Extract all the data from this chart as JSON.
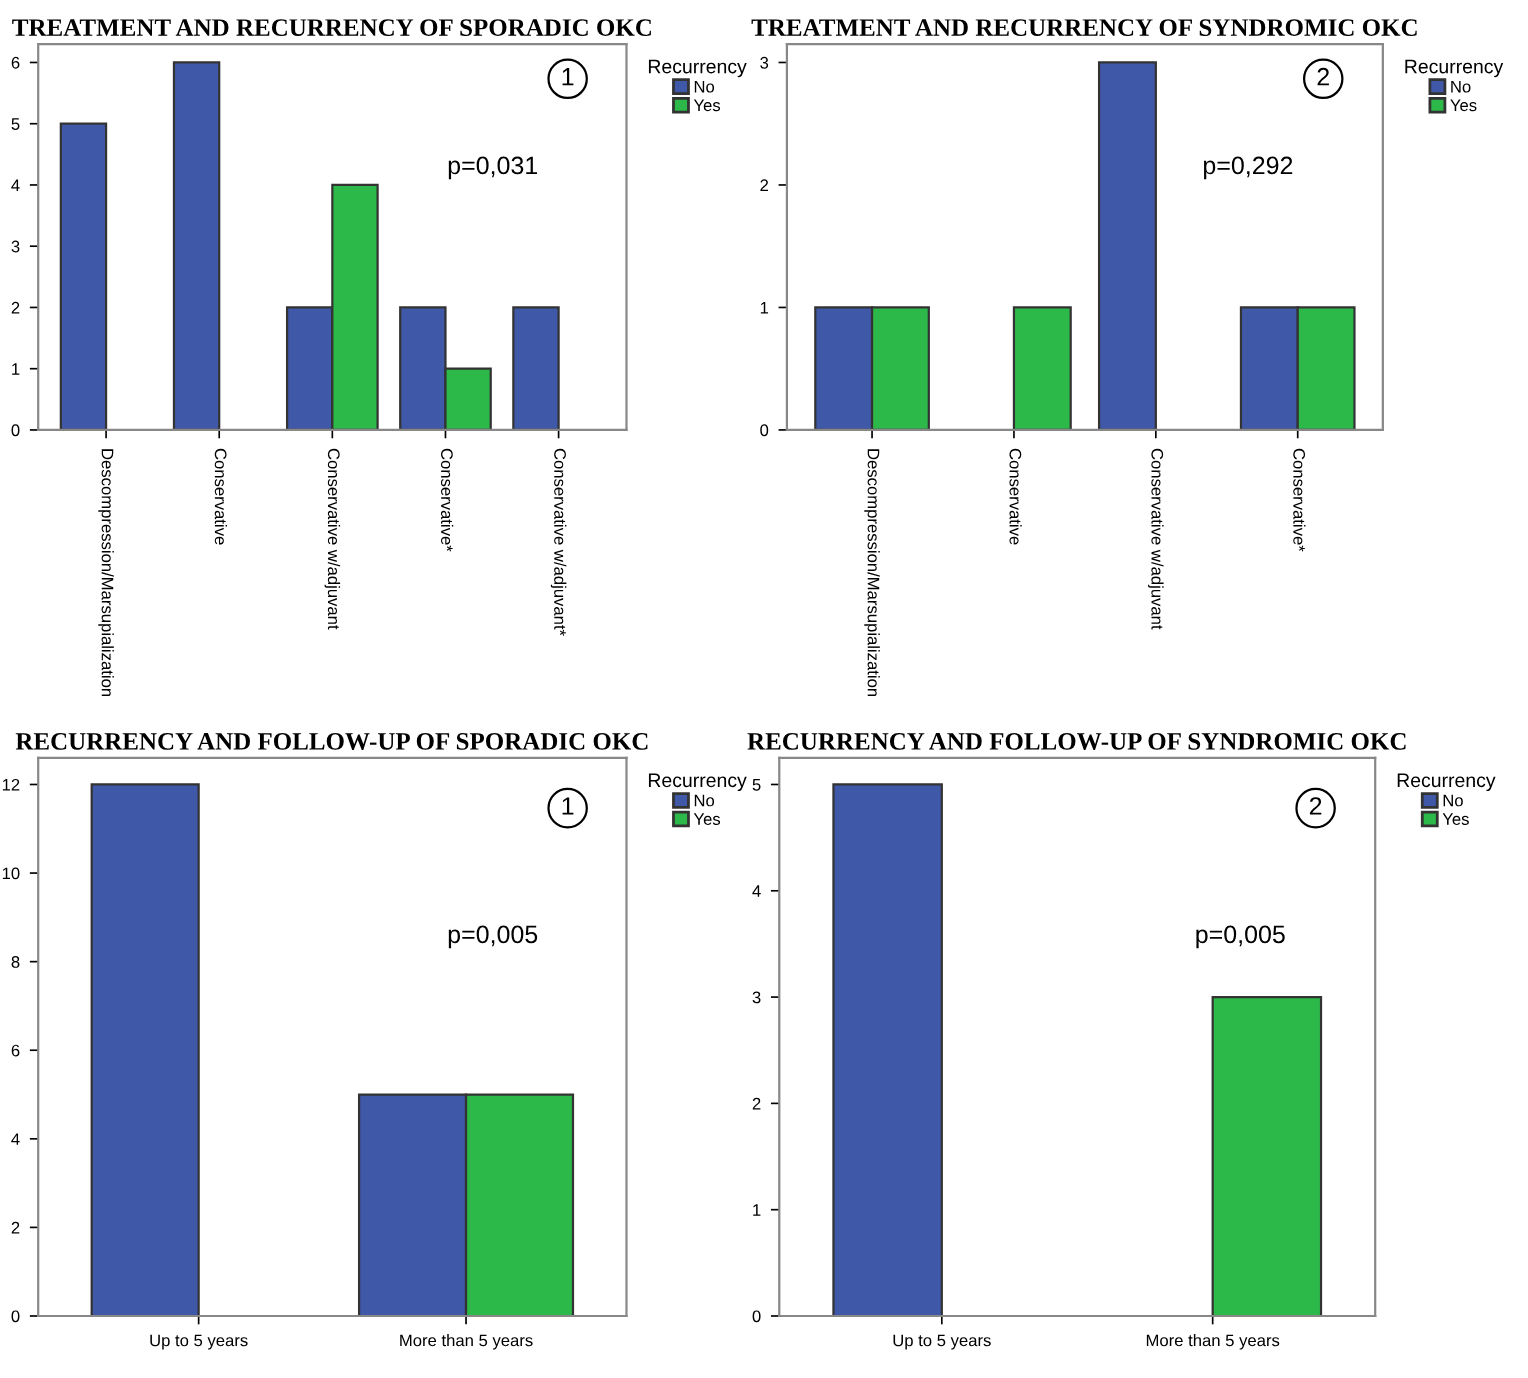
{
  "chart_data": [
    {
      "type": "bar",
      "title": "TREATMENT AND RECURRENCY OF SPORADIC OKC",
      "legend_title": "Recurrency",
      "legend": "top right",
      "grid": false,
      "categories": [
        "Descompression/Marsupialization",
        "Conservative",
        "Conservative w/adjuvant",
        "Conservative*",
        "Conservative w/adjuvant*"
      ],
      "series": [
        {
          "name": "No",
          "color": "#3f58a8",
          "values": [
            5,
            6,
            2,
            2,
            2
          ]
        },
        {
          "name": "Yes",
          "color": "#2db84a",
          "values": [
            null,
            null,
            4,
            1,
            null
          ]
        }
      ],
      "ylim": [
        0,
        6.3
      ],
      "yticks": [
        0,
        1,
        2,
        3,
        4,
        5,
        6
      ],
      "annotations": [
        "1",
        "p=0,031"
      ]
    },
    {
      "type": "bar",
      "title": "TREATMENT AND RECURRENCY OF SYNDROMIC OKC",
      "legend_title": "Recurrency",
      "legend": "top right",
      "grid": false,
      "categories": [
        "Descompression/Marsupialization",
        "Conservative",
        "Conservative w/adjuvant",
        "Conservative*"
      ],
      "series": [
        {
          "name": "No",
          "color": "#3f58a8",
          "values": [
            1,
            null,
            3,
            1
          ]
        },
        {
          "name": "Yes",
          "color": "#2db84a",
          "values": [
            1,
            1,
            null,
            1
          ]
        }
      ],
      "ylim": [
        0,
        3.15
      ],
      "yticks": [
        0,
        1,
        2,
        3
      ],
      "annotations": [
        "2",
        "p=0,292"
      ]
    },
    {
      "type": "bar",
      "title": "RECURRENCY AND FOLLOW-UP OF SPORADIC OKC",
      "legend_title": "Recurrency",
      "legend": "top right",
      "grid": false,
      "categories": [
        "Up to 5 years",
        "More than 5 years"
      ],
      "series": [
        {
          "name": "No",
          "color": "#3f58a8",
          "values": [
            12,
            5
          ]
        },
        {
          "name": "Yes",
          "color": "#2db84a",
          "values": [
            null,
            5
          ]
        }
      ],
      "ylim": [
        0,
        12.6
      ],
      "yticks": [
        0,
        2,
        4,
        6,
        8,
        10,
        12
      ],
      "annotations": [
        "1",
        "p=0,005"
      ]
    },
    {
      "type": "bar",
      "title": "RECURRENCY AND FOLLOW-UP OF SYNDROMIC OKC",
      "legend_title": "Recurrency",
      "legend": "top right",
      "grid": false,
      "categories": [
        "Up to 5 years",
        "More than 5 years"
      ],
      "series": [
        {
          "name": "No",
          "color": "#3f58a8",
          "values": [
            5,
            null
          ]
        },
        {
          "name": "Yes",
          "color": "#2db84a",
          "values": [
            null,
            3
          ]
        }
      ],
      "ylim": [
        0,
        5.25
      ],
      "yticks": [
        0,
        1,
        2,
        3,
        4,
        5
      ],
      "annotations": [
        "2",
        "p=0,005"
      ]
    }
  ]
}
